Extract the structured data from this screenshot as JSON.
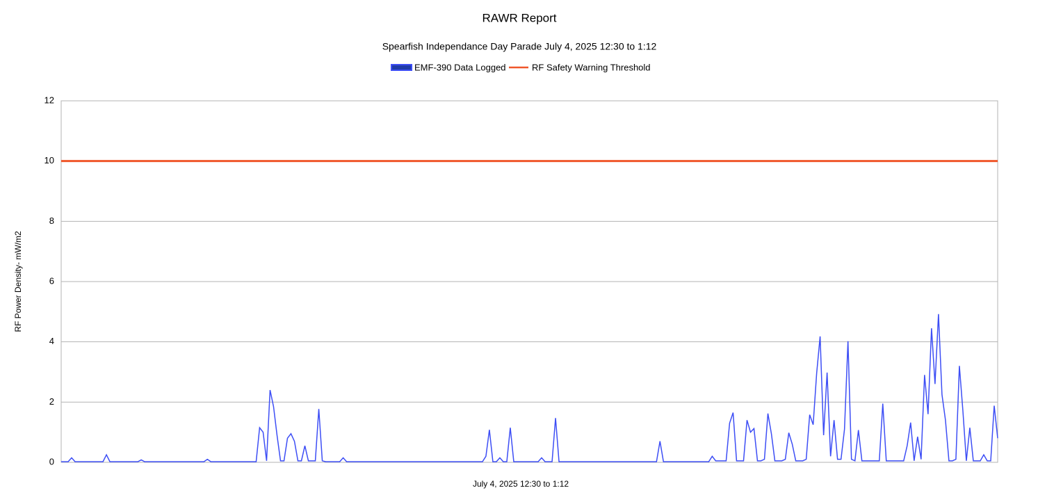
{
  "chart_data": {
    "type": "line",
    "title": "RAWR  Report",
    "subtitle": "Spearfish Independance Day Parade July 4, 2025 12:30 to 1:12",
    "x_label": "July 4, 2025  12:30  to  1:12",
    "y_label": "RF  Power  Density-  mW/m2",
    "ylim": [
      0,
      12
    ],
    "yticks": [
      0,
      2,
      4,
      6,
      8,
      10,
      12
    ],
    "grid": true,
    "series": [
      {
        "name": "EMF-390 Data Logged",
        "color": "#3d4ef5",
        "values": [
          0.02,
          0.02,
          0.02,
          0.15,
          0.02,
          0.02,
          0.02,
          0.02,
          0.02,
          0.02,
          0.02,
          0.02,
          0.02,
          0.25,
          0.02,
          0.02,
          0.02,
          0.02,
          0.02,
          0.02,
          0.02,
          0.02,
          0.02,
          0.08,
          0.02,
          0.02,
          0.02,
          0.02,
          0.02,
          0.02,
          0.02,
          0.02,
          0.02,
          0.02,
          0.02,
          0.02,
          0.02,
          0.02,
          0.02,
          0.02,
          0.02,
          0.02,
          0.1,
          0.02,
          0.02,
          0.02,
          0.02,
          0.02,
          0.02,
          0.02,
          0.02,
          0.02,
          0.02,
          0.02,
          0.02,
          0.02,
          0.02,
          1.15,
          1.0,
          0.05,
          2.4,
          1.85,
          0.9,
          0.05,
          0.05,
          0.8,
          0.95,
          0.7,
          0.05,
          0.05,
          0.55,
          0.05,
          0.05,
          0.05,
          1.77,
          0.05,
          0.02,
          0.02,
          0.02,
          0.02,
          0.02,
          0.15,
          0.02,
          0.02,
          0.02,
          0.02,
          0.02,
          0.02,
          0.02,
          0.02,
          0.02,
          0.02,
          0.02,
          0.02,
          0.02,
          0.02,
          0.02,
          0.02,
          0.02,
          0.02,
          0.02,
          0.02,
          0.02,
          0.02,
          0.02,
          0.02,
          0.02,
          0.02,
          0.02,
          0.02,
          0.02,
          0.02,
          0.02,
          0.02,
          0.02,
          0.02,
          0.02,
          0.02,
          0.02,
          0.02,
          0.02,
          0.02,
          0.2,
          1.08,
          0.02,
          0.02,
          0.15,
          0.02,
          0.02,
          1.15,
          0.02,
          0.02,
          0.02,
          0.02,
          0.02,
          0.02,
          0.02,
          0.02,
          0.15,
          0.02,
          0.02,
          0.02,
          1.47,
          0.02,
          0.02,
          0.02,
          0.02,
          0.02,
          0.02,
          0.02,
          0.02,
          0.02,
          0.02,
          0.02,
          0.02,
          0.02,
          0.02,
          0.02,
          0.02,
          0.02,
          0.02,
          0.02,
          0.02,
          0.02,
          0.02,
          0.02,
          0.02,
          0.02,
          0.02,
          0.02,
          0.02,
          0.02,
          0.7,
          0.02,
          0.02,
          0.02,
          0.02,
          0.02,
          0.02,
          0.02,
          0.02,
          0.02,
          0.02,
          0.02,
          0.02,
          0.02,
          0.02,
          0.2,
          0.05,
          0.05,
          0.05,
          0.05,
          1.3,
          1.65,
          0.05,
          0.05,
          0.05,
          1.4,
          1.0,
          1.12,
          0.05,
          0.05,
          0.1,
          1.62,
          0.95,
          0.05,
          0.05,
          0.05,
          0.1,
          0.98,
          0.6,
          0.05,
          0.05,
          0.05,
          0.1,
          1.58,
          1.25,
          2.95,
          4.18,
          0.9,
          2.98,
          0.2,
          1.4,
          0.1,
          0.1,
          1.1,
          4.02,
          0.1,
          0.05,
          1.07,
          0.05,
          0.05,
          0.05,
          0.05,
          0.05,
          0.05,
          1.95,
          0.05,
          0.05,
          0.05,
          0.05,
          0.05,
          0.05,
          0.55,
          1.32,
          0.05,
          0.85,
          0.1,
          2.9,
          1.6,
          4.45,
          2.6,
          4.92,
          2.25,
          1.4,
          0.05,
          0.05,
          0.1,
          3.2,
          1.72,
          0.05,
          1.15,
          0.05,
          0.05,
          0.05,
          0.25,
          0.05,
          0.05,
          1.88,
          0.8
        ]
      }
    ],
    "threshold": {
      "name": "RF Safety Warning Threshold",
      "color": "#f0572a",
      "value": 10
    }
  }
}
